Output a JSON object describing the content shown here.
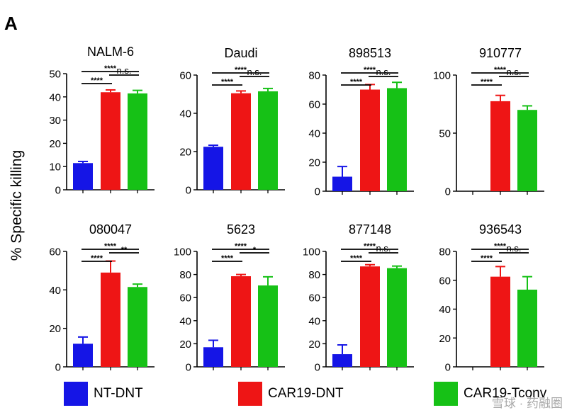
{
  "panel_label": "A",
  "y_axis_label": "% Specific killing",
  "legend": [
    {
      "label": "NT-DNT",
      "color": "#1515e6"
    },
    {
      "label": "CAR19-DNT",
      "color": "#ee1515"
    },
    {
      "label": "CAR19-Tconv",
      "color": "#16c116"
    }
  ],
  "watermark": "雪球 · 药融圈",
  "chart_data": [
    {
      "type": "bar",
      "title": "NALM-6",
      "categories": [
        "NT-DNT",
        "CAR19-DNT",
        "CAR19-Tconv"
      ],
      "values": [
        11.5,
        42,
        41.5
      ],
      "errors": [
        0.7,
        1.0,
        1.3
      ],
      "ylim": [
        0,
        50
      ],
      "yticks": [
        0,
        10,
        20,
        30,
        40,
        50
      ],
      "significance": [
        {
          "from": 0,
          "to": 2,
          "label": "****"
        },
        {
          "from": 0,
          "to": 1,
          "label": "****"
        },
        {
          "from": 1,
          "to": 2,
          "label": "n.s."
        }
      ]
    },
    {
      "type": "bar",
      "title": "Daudi",
      "categories": [
        "NT-DNT",
        "CAR19-DNT",
        "CAR19-Tconv"
      ],
      "values": [
        22.5,
        50.5,
        51.5
      ],
      "errors": [
        0.8,
        1.2,
        1.5
      ],
      "ylim": [
        0,
        60
      ],
      "yticks": [
        0,
        20,
        40,
        60
      ],
      "significance": [
        {
          "from": 0,
          "to": 2,
          "label": "****"
        },
        {
          "from": 0,
          "to": 1,
          "label": "****"
        },
        {
          "from": 1,
          "to": 2,
          "label": "n.s."
        }
      ]
    },
    {
      "type": "bar",
      "title": "898513",
      "categories": [
        "NT-DNT",
        "CAR19-DNT",
        "CAR19-Tconv"
      ],
      "values": [
        10,
        70,
        71
      ],
      "errors": [
        7,
        3.5,
        4
      ],
      "ylim": [
        0,
        80
      ],
      "yticks": [
        0,
        20,
        40,
        60,
        80
      ],
      "significance": [
        {
          "from": 0,
          "to": 2,
          "label": "****"
        },
        {
          "from": 0,
          "to": 1,
          "label": "****"
        },
        {
          "from": 1,
          "to": 2,
          "label": "n.s."
        }
      ]
    },
    {
      "type": "bar",
      "title": "910777",
      "categories": [
        "NT-DNT",
        "CAR19-DNT",
        "CAR19-Tconv"
      ],
      "values": [
        0,
        77.5,
        70
      ],
      "errors": [
        0,
        5,
        3.5
      ],
      "ylim": [
        0,
        100
      ],
      "yticks": [
        0,
        50,
        100
      ],
      "significance": [
        {
          "from": 0,
          "to": 2,
          "label": "****"
        },
        {
          "from": 0,
          "to": 1,
          "label": "****"
        },
        {
          "from": 1,
          "to": 2,
          "label": "n.s."
        }
      ]
    },
    {
      "type": "bar",
      "title": "080047",
      "categories": [
        "NT-DNT",
        "CAR19-DNT",
        "CAR19-Tconv"
      ],
      "values": [
        12,
        49,
        41.5
      ],
      "errors": [
        3.5,
        6,
        1.5
      ],
      "ylim": [
        0,
        60
      ],
      "yticks": [
        0,
        20,
        40,
        60
      ],
      "significance": [
        {
          "from": 0,
          "to": 2,
          "label": "****"
        },
        {
          "from": 0,
          "to": 1,
          "label": "****"
        },
        {
          "from": 1,
          "to": 2,
          "label": "**"
        }
      ]
    },
    {
      "type": "bar",
      "title": "5623",
      "categories": [
        "NT-DNT",
        "CAR19-DNT",
        "CAR19-Tconv"
      ],
      "values": [
        17,
        78.5,
        70.5
      ],
      "errors": [
        6,
        1.5,
        7.5
      ],
      "ylim": [
        0,
        100
      ],
      "yticks": [
        0,
        20,
        40,
        60,
        80,
        100
      ],
      "significance": [
        {
          "from": 0,
          "to": 2,
          "label": "****"
        },
        {
          "from": 0,
          "to": 1,
          "label": "****"
        },
        {
          "from": 1,
          "to": 2,
          "label": "*"
        }
      ]
    },
    {
      "type": "bar",
      "title": "877148",
      "categories": [
        "NT-DNT",
        "CAR19-DNT",
        "CAR19-Tconv"
      ],
      "values": [
        11,
        87,
        85.5
      ],
      "errors": [
        8,
        1.5,
        1.8
      ],
      "ylim": [
        0,
        100
      ],
      "yticks": [
        0,
        20,
        40,
        60,
        80,
        100
      ],
      "significance": [
        {
          "from": 0,
          "to": 2,
          "label": "****"
        },
        {
          "from": 0,
          "to": 1,
          "label": "****"
        },
        {
          "from": 1,
          "to": 2,
          "label": "n.s."
        }
      ]
    },
    {
      "type": "bar",
      "title": "936543",
      "categories": [
        "NT-DNT",
        "CAR19-DNT",
        "CAR19-Tconv"
      ],
      "values": [
        0,
        62.5,
        53.5
      ],
      "errors": [
        0,
        7,
        9
      ],
      "ylim": [
        0,
        80
      ],
      "yticks": [
        0,
        20,
        40,
        60,
        80
      ],
      "significance": [
        {
          "from": 0,
          "to": 2,
          "label": "****"
        },
        {
          "from": 0,
          "to": 1,
          "label": "****"
        },
        {
          "from": 1,
          "to": 2,
          "label": "n.s."
        }
      ]
    }
  ]
}
